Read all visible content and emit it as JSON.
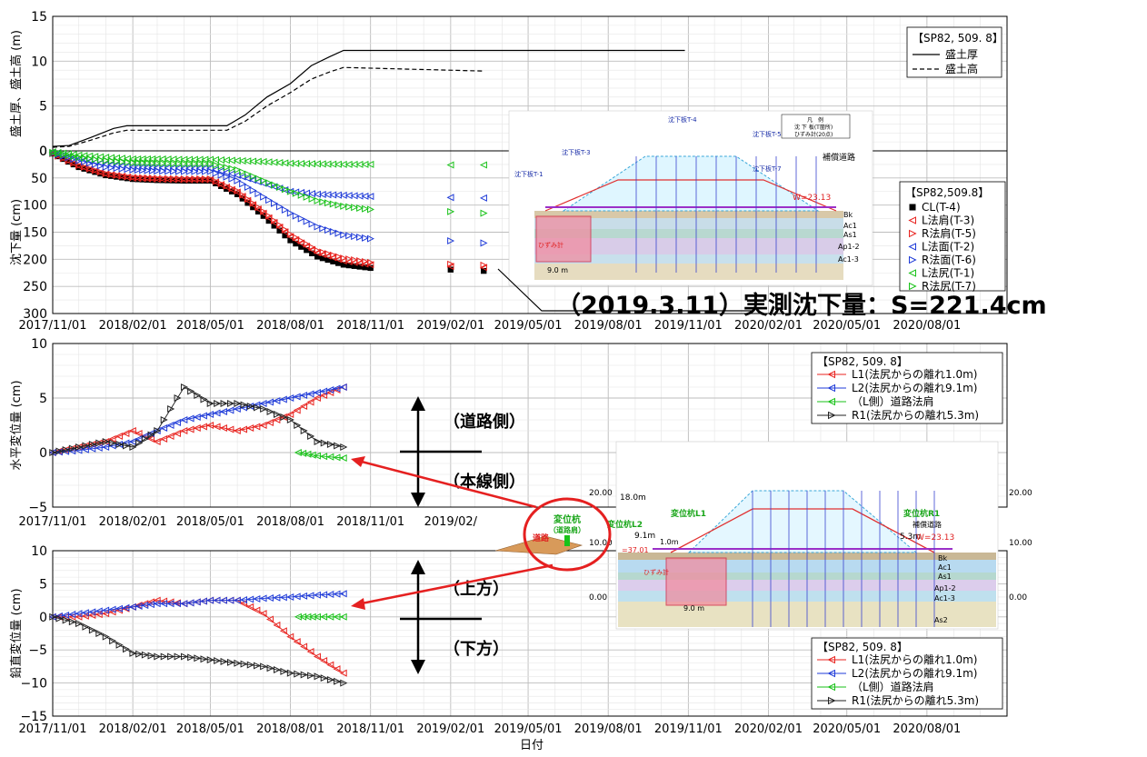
{
  "colors": {
    "L1": "#e8231f",
    "L2": "#1f3bd8",
    "road": "#19c219",
    "R1": "#222222",
    "callout": "#e52020",
    "grid": "#cccccc"
  },
  "xaxis": {
    "label": "日付",
    "ticks": [
      "2017/11/01",
      "2018/02/01",
      "2018/05/01",
      "2018/08/01",
      "2018/11/01",
      "2019/02/01",
      "2019/05/01",
      "2019/08/01",
      "2019/11/01",
      "2020/02/01",
      "2020/05/01",
      "2020/08/01"
    ]
  },
  "annotation_main": "（2019.3.11）実測沈下量：S=221.4cm",
  "arrows": {
    "road_side": "（道路側）",
    "main_side": "（本線側）",
    "up": "（上方）",
    "down": "（下方）"
  },
  "chart_data": [
    {
      "type": "line",
      "panel": "fill",
      "ylabel": "盛土厚、盛土高 (m)",
      "ylim": [
        0,
        15
      ],
      "yticks": [
        "15",
        "10",
        "5",
        "0"
      ],
      "legend": {
        "title": "【SP82, 509. 8】",
        "entries": [
          "盛土厚",
          "盛土高"
        ]
      },
      "series": [
        {
          "name": "盛土厚",
          "x": [
            "2017-11-01",
            "2017-11-20",
            "2017-12-15",
            "2018-01-10",
            "2018-01-25",
            "2018-05-20",
            "2018-06-10",
            "2018-07-05",
            "2018-08-01",
            "2018-08-25",
            "2018-09-15",
            "2018-10-01",
            "2019-10-28"
          ],
          "values": [
            0.5,
            0.6,
            1.5,
            2.5,
            2.8,
            2.8,
            4.0,
            6.0,
            7.5,
            9.5,
            10.5,
            11.2,
            11.2
          ]
        },
        {
          "name": "盛土高",
          "x": [
            "2017-11-01",
            "2017-11-20",
            "2017-12-15",
            "2018-01-10",
            "2018-01-25",
            "2018-05-20",
            "2018-06-10",
            "2018-07-05",
            "2018-08-01",
            "2018-08-25",
            "2018-09-15",
            "2018-10-01",
            "2019-03-11"
          ],
          "values": [
            0.4,
            0.5,
            1.2,
            2.0,
            2.3,
            2.3,
            3.3,
            5.0,
            6.5,
            8.0,
            8.8,
            9.3,
            8.9
          ]
        }
      ]
    },
    {
      "type": "scatter",
      "panel": "settlement",
      "ylabel": "沈下量 (cm)",
      "ylim": [
        0,
        300
      ],
      "yticks": [
        "0",
        "50",
        "100",
        "150",
        "200",
        "250",
        "300"
      ],
      "legend": {
        "title": "【SP82,509.8】",
        "entries": [
          "CL(T-4)",
          "L法肩(T-3)",
          "R法肩(T-5)",
          "L法面(T-2)",
          "R法面(T-6)",
          "L法尻(T-1)",
          "R法尻(T-7)"
        ]
      },
      "x": [
        "2017-11-01",
        "2017-12-01",
        "2018-01-01",
        "2018-02-01",
        "2018-03-01",
        "2018-04-01",
        "2018-05-01",
        "2018-06-01",
        "2018-07-01",
        "2018-08-01",
        "2018-09-01",
        "2018-10-01",
        "2018-11-01",
        "2019-02-01",
        "2019-03-11"
      ],
      "series": [
        {
          "name": "CL(T-4)",
          "values": [
            5,
            30,
            45,
            52,
            54,
            55,
            55,
            80,
            120,
            165,
            195,
            210,
            216,
            219,
            221.4
          ]
        },
        {
          "name": "L法肩(T-3)",
          "values": [
            5,
            28,
            43,
            50,
            52,
            53,
            53,
            76,
            115,
            158,
            188,
            203,
            210,
            213,
            215
          ]
        },
        {
          "name": "R法肩(T-5)",
          "values": [
            5,
            27,
            42,
            49,
            51,
            52,
            52,
            74,
            112,
            154,
            184,
            198,
            206,
            209,
            211
          ]
        },
        {
          "name": "L法面(T-2)",
          "values": [
            3,
            15,
            25,
            30,
            31,
            32,
            32,
            45,
            60,
            75,
            80,
            82,
            84,
            86,
            87
          ]
        },
        {
          "name": "R法面(T-6)",
          "values": [
            4,
            18,
            30,
            35,
            37,
            38,
            38,
            55,
            85,
            115,
            140,
            155,
            162,
            166,
            170
          ]
        },
        {
          "name": "L法尻(T-1)",
          "values": [
            2,
            8,
            12,
            15,
            15,
            16,
            16,
            18,
            20,
            23,
            24,
            25,
            25,
            26,
            26
          ]
        },
        {
          "name": "R法尻(T-7)",
          "values": [
            3,
            12,
            18,
            22,
            23,
            24,
            24,
            35,
            55,
            75,
            92,
            102,
            108,
            112,
            115
          ]
        }
      ]
    },
    {
      "type": "line",
      "panel": "horizontal",
      "ylabel": "水平変位量 (cm)",
      "ylim": [
        -5,
        10
      ],
      "yticks": [
        "10",
        "5",
        "0",
        "−5"
      ],
      "legend": {
        "title": "【SP82, 509. 8】",
        "entries": [
          "L1(法尻からの離れ1.0m)",
          "L2(法尻からの離れ9.1m)",
          "（L側）道路法肩",
          "R1(法尻からの離れ5.3m)"
        ]
      },
      "x": [
        "2017-11-01",
        "2017-12-01",
        "2018-01-01",
        "2018-02-01",
        "2018-03-01",
        "2018-04-01",
        "2018-05-01",
        "2018-06-01",
        "2018-07-01",
        "2018-08-01",
        "2018-09-01",
        "2018-10-01"
      ],
      "series": [
        {
          "name": "L1",
          "values": [
            0,
            0.5,
            1.0,
            2.0,
            1.0,
            2.0,
            2.5,
            2.0,
            2.5,
            3.5,
            5.0,
            6.0
          ]
        },
        {
          "name": "L2",
          "values": [
            0,
            0.2,
            0.5,
            1.0,
            2.0,
            3.0,
            3.5,
            4.0,
            4.5,
            5.0,
            5.5,
            6.0
          ]
        },
        {
          "name": "（L側）道路法肩",
          "x": [
            "2018-08-10",
            "2018-09-01",
            "2018-10-01"
          ],
          "values": [
            0.0,
            -0.3,
            -0.5
          ]
        },
        {
          "name": "R1",
          "values": [
            0,
            0.5,
            1.0,
            0.5,
            2.0,
            6.0,
            4.5,
            4.5,
            4.0,
            3.0,
            1.0,
            0.5
          ]
        }
      ]
    },
    {
      "type": "line",
      "panel": "vertical",
      "ylabel": "鉛直変位量 (cm)",
      "ylim": [
        -15,
        10
      ],
      "yticks": [
        "10",
        "5",
        "0",
        "−5",
        "−10",
        "−15"
      ],
      "legend": {
        "title": "【SP82, 509. 8】",
        "entries": [
          "L1(法尻からの離れ1.0m)",
          "L2(法尻からの離れ9.1m)",
          "（L側）道路法肩",
          "R1(法尻からの離れ5.3m)"
        ]
      },
      "x": [
        "2017-11-01",
        "2017-12-01",
        "2018-01-01",
        "2018-02-01",
        "2018-03-01",
        "2018-04-01",
        "2018-05-01",
        "2018-06-01",
        "2018-07-01",
        "2018-08-01",
        "2018-09-01",
        "2018-10-01"
      ],
      "series": [
        {
          "name": "L1",
          "values": [
            0,
            0,
            0.5,
            1.5,
            2.5,
            2.0,
            2.5,
            2.5,
            0.5,
            -3.0,
            -6.0,
            -8.5
          ]
        },
        {
          "name": "L2",
          "values": [
            0,
            0.5,
            1.0,
            1.5,
            2.0,
            2.0,
            2.5,
            2.5,
            2.8,
            3.0,
            3.3,
            3.5
          ]
        },
        {
          "name": "（L側）道路法肩",
          "x": [
            "2018-08-10",
            "2018-09-01",
            "2018-10-01"
          ],
          "values": [
            0,
            0,
            0
          ]
        },
        {
          "name": "R1",
          "values": [
            0,
            -1.0,
            -3.0,
            -5.5,
            -6.0,
            -6.0,
            -6.5,
            -7.0,
            -7.5,
            -8.5,
            -9.0,
            -10.0
          ]
        }
      ]
    }
  ],
  "cross_section_small": {
    "labels": [
      "沈下板T-4",
      "沈下板T-3",
      "沈下板T-5",
      "沈下板T-2",
      "沈下板T-6",
      "沈下板T-1",
      "沈下板T-7",
      "凡　例",
      "沈 下 板(T箇所)",
      "ひずみ計(20点)",
      "補償道路",
      "W=23.13",
      "Bk",
      "Ac1",
      "As1",
      "Ap1-2",
      "Ac1-3",
      "9.0 m",
      "ひずみ計"
    ]
  },
  "cross_section_large": {
    "labels": [
      "20.00",
      "10.00",
      "0.00",
      "18.0m",
      "9.1m",
      "1.0m",
      "5.3m",
      "変位杭L1",
      "変位杭L2",
      "変位杭R1",
      "補償道路",
      "W=23.13",
      "Bk",
      "Ac1",
      "As1",
      "Ap1-2",
      "Ac1-3",
      "As2",
      "9.0 m",
      "ひずみ計",
      "=37.01"
    ]
  },
  "callout": {
    "label": "変位杭\n（道路肩）",
    "road": "道路"
  }
}
